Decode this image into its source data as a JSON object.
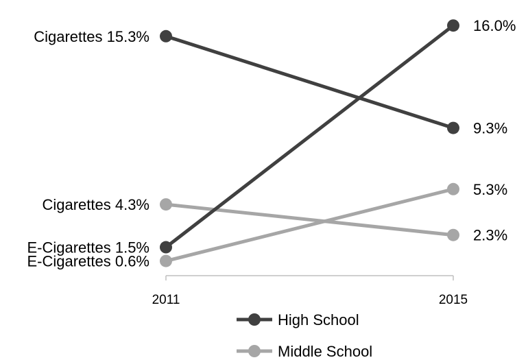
{
  "chart_data": {
    "type": "line",
    "x": [
      "2011",
      "2015"
    ],
    "series": [
      {
        "name": "High School",
        "color": "#404040",
        "lines": [
          {
            "values": [
              15.3,
              9.3
            ],
            "labels": [
              "Cigarettes 15.3%",
              "9.3%"
            ]
          },
          {
            "values": [
              1.5,
              16.0
            ],
            "labels": [
              "E-Cigarettes 1.5%",
              "16.0%"
            ]
          }
        ]
      },
      {
        "name": "Middle School",
        "color": "#a6a6a6",
        "lines": [
          {
            "values": [
              4.3,
              2.3
            ],
            "labels": [
              "Cigarettes 4.3%",
              "2.3%"
            ]
          },
          {
            "values": [
              0.6,
              5.3
            ],
            "labels": [
              "E-Cigarettes 0.6%",
              "5.3%"
            ]
          }
        ]
      }
    ],
    "title": "",
    "xlabel": "",
    "ylabel": "",
    "ylim": [
      0,
      16.5
    ],
    "grid": false,
    "legend_position": "bottom"
  }
}
